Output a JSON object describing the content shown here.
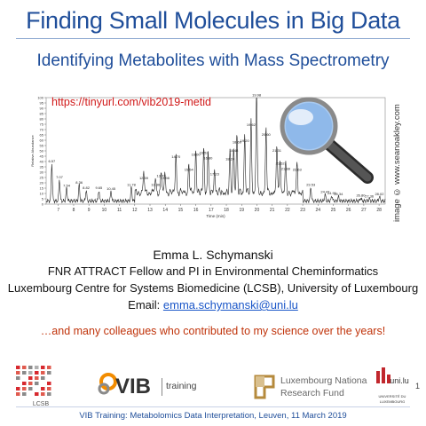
{
  "header": {
    "title": "Finding Small Molecules in Big Data",
    "subtitle": "Identifying Metabolites with Mass Spectrometry"
  },
  "figure": {
    "url": "https://tinyurl.com/vib2019-metid",
    "credit": "image © www.seanoakley.com"
  },
  "chart_data": {
    "type": "line",
    "xlabel": "Time (min)",
    "ylabel": "Relative Abundance",
    "xlim": [
      6.2,
      28.4
    ],
    "ylim": [
      0,
      100
    ],
    "x_ticks": [
      7,
      8,
      9,
      10,
      11,
      12,
      13,
      14,
      15,
      16,
      17,
      18,
      19,
      20,
      21,
      22,
      23,
      24,
      25,
      26,
      27,
      28
    ],
    "y_ticks": [
      0,
      5,
      10,
      15,
      20,
      25,
      30,
      35,
      40,
      45,
      50,
      55,
      60,
      65,
      70,
      75,
      80,
      85,
      90,
      95,
      100
    ],
    "peaks": [
      {
        "x": 6.57,
        "y": 38,
        "label": "6.57"
      },
      {
        "x": 7.07,
        "y": 23,
        "label": "7.07"
      },
      {
        "x": 7.54,
        "y": 15,
        "label": "7.54"
      },
      {
        "x": 8.36,
        "y": 18,
        "label": "8.36"
      },
      {
        "x": 8.82,
        "y": 13,
        "label": "8.82"
      },
      {
        "x": 9.65,
        "y": 13,
        "label": "9.65"
      },
      {
        "x": 10.45,
        "y": 12,
        "label": "10.45"
      },
      {
        "x": 11.78,
        "y": 16,
        "label": "11.78"
      },
      {
        "x": 12.59,
        "y": 22,
        "label": "12.59"
      },
      {
        "x": 13.36,
        "y": 16,
        "label": "13.36"
      },
      {
        "x": 13.73,
        "y": 24,
        "label": "13.73"
      },
      {
        "x": 13.98,
        "y": 22,
        "label": "13.98"
      },
      {
        "x": 14.7,
        "y": 42,
        "label": "14.70"
      },
      {
        "x": 15.54,
        "y": 30,
        "label": "15.54"
      },
      {
        "x": 16.0,
        "y": 44,
        "label": "16.00"
      },
      {
        "x": 16.52,
        "y": 46,
        "label": "16.52"
      },
      {
        "x": 16.8,
        "y": 41,
        "label": "16.80"
      },
      {
        "x": 17.23,
        "y": 26,
        "label": "17.23"
      },
      {
        "x": 18.24,
        "y": 40,
        "label": "18.24"
      },
      {
        "x": 18.48,
        "y": 48,
        "label": "18.48"
      },
      {
        "x": 18.69,
        "y": 56,
        "label": "18.69"
      },
      {
        "x": 19.2,
        "y": 57,
        "label": "19.20"
      },
      {
        "x": 19.62,
        "y": 72,
        "label": "19.62"
      },
      {
        "x": 19.98,
        "y": 100,
        "label": "19.98"
      },
      {
        "x": 20.6,
        "y": 63,
        "label": "20.60"
      },
      {
        "x": 21.31,
        "y": 48,
        "label": "21.31"
      },
      {
        "x": 21.52,
        "y": 36,
        "label": "21.52"
      },
      {
        "x": 21.88,
        "y": 31,
        "label": "21.88"
      },
      {
        "x": 22.63,
        "y": 30,
        "label": "22.63"
      },
      {
        "x": 23.53,
        "y": 16,
        "label": "23.53"
      },
      {
        "x": 24.47,
        "y": 9,
        "label": "24.47"
      },
      {
        "x": 24.91,
        "y": 8,
        "label": "24.91"
      },
      {
        "x": 25.34,
        "y": 7,
        "label": "25.34"
      },
      {
        "x": 26.8,
        "y": 6,
        "label": "26.80"
      },
      {
        "x": 27.36,
        "y": 5,
        "label": "27.36"
      },
      {
        "x": 28.02,
        "y": 7,
        "label": "28.02"
      }
    ]
  },
  "speaker": {
    "name": "Emma L. Schymanski",
    "role": "FNR ATTRACT Fellow and PI in Environmental Cheminformatics",
    "affiliation": "Luxembourg Centre for Systems Biomedicine (LCSB), University of Luxembourg",
    "email_label": "Email: ",
    "email": "emma.schymanski@uni.lu"
  },
  "acknowledgement": "…and many colleagues who contributed to my science over the years!",
  "logos": {
    "lcsb": "LCSB",
    "vib": "VIB",
    "vib_sub": "training",
    "fnr_line1": "Luxembourg Nationa",
    "fnr_line2": "Research Fund",
    "uni_name": "uni.lu",
    "uni_line1": "UNIVERSITÉ DU",
    "uni_line2": "LUXEMBOURG",
    "fnr_color": "#b58a3c",
    "vib_color": "#f28c00",
    "uni_color": "#c1272d",
    "lcsb_color": "#d7292f"
  },
  "footer": {
    "text": "VIB Training: Metabolomics Data Interpretation, Leuven, 11 March 2019",
    "slide_number": "1"
  }
}
